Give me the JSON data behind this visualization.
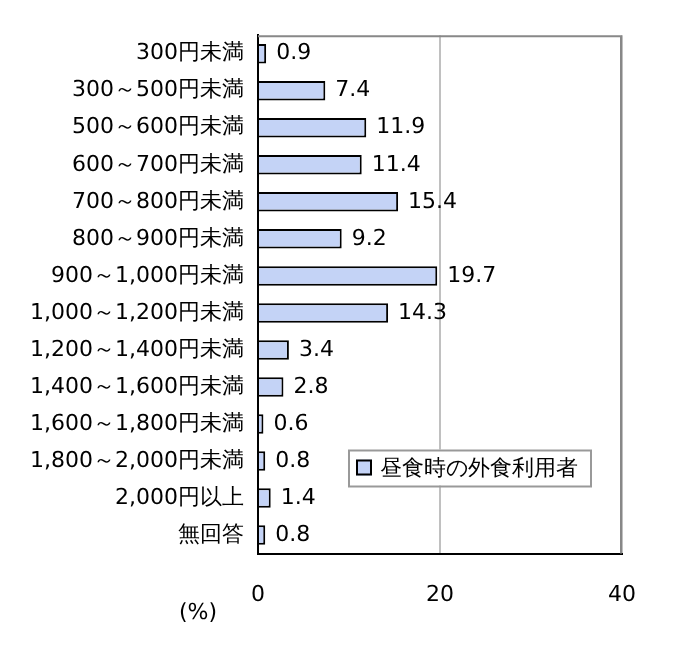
{
  "chart_data": {
    "type": "bar",
    "orientation": "horizontal",
    "xlabel": "(%)",
    "categories": [
      "300円未満",
      "300～500円未満",
      "500～600円未満",
      "600～700円未満",
      "700～800円未満",
      "800～900円未満",
      "900～1,000円未満",
      "1,000～1,200円未満",
      "1,200～1,400円未満",
      "1,400～1,600円未満",
      "1,600～1,800円未満",
      "1,800～2,000円未満",
      "2,000円以上",
      "無回答"
    ],
    "series": [
      {
        "name": "昼食時の外食利用者",
        "color": "#c4d3f6",
        "values": [
          0.9,
          7.4,
          11.9,
          11.4,
          15.4,
          9.2,
          19.7,
          14.3,
          3.4,
          2.8,
          0.6,
          0.8,
          1.4,
          0.8
        ]
      }
    ],
    "xlim": [
      0,
      40
    ],
    "xticks": [
      0,
      20,
      40
    ],
    "grid": "x",
    "legend": "bottom right",
    "data_labels": true
  }
}
